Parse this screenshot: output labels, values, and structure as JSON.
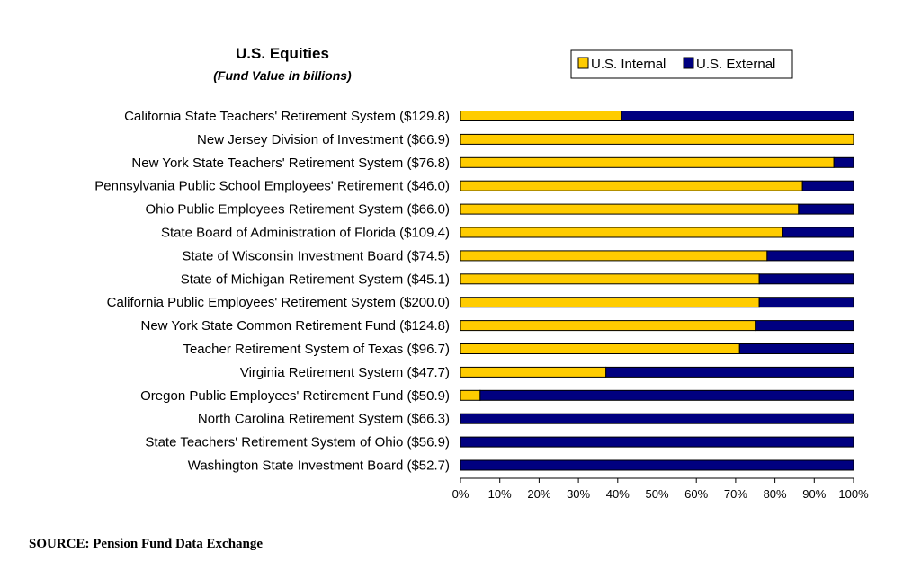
{
  "chart_data": {
    "type": "bar",
    "orientation": "horizontal",
    "stacked": "percent",
    "title": "U.S. Equities",
    "subtitle": "(Fund Value in billions)",
    "categories": [
      "California State Teachers' Retirement System ($129.8)",
      "New Jersey Division of Investment ($66.9)",
      "New York State Teachers' Retirement System ($76.8)",
      "Pennsylvania Public School Employees' Retirement ($46.0)",
      "Ohio Public Employees Retirement System ($66.0)",
      "State Board of Administration of Florida ($109.4)",
      "State of Wisconsin Investment Board ($74.5)",
      "State of Michigan Retirement System ($45.1)",
      "California Public Employees' Retirement System ($200.0)",
      "New York State Common Retirement Fund ($124.8)",
      "Teacher Retirement System of Texas ($96.7)",
      "Virginia Retirement System ($47.7)",
      "Oregon Public Employees' Retirement Fund ($50.9)",
      "North Carolina Retirement System ($66.3)",
      "State Teachers' Retirement System of Ohio ($56.9)",
      "Washington State Investment Board ($52.7)"
    ],
    "series": [
      {
        "name": "U.S. Internal",
        "color": "#FFCC00",
        "values": [
          41,
          100,
          95,
          87,
          86,
          82,
          78,
          76,
          76,
          75,
          71,
          37,
          5,
          0,
          0,
          0
        ]
      },
      {
        "name": "U.S. External",
        "color": "#000080",
        "values": [
          59,
          0,
          5,
          13,
          14,
          18,
          22,
          24,
          24,
          25,
          29,
          63,
          95,
          100,
          100,
          100
        ]
      }
    ],
    "xlim": [
      0,
      100
    ],
    "xticks": [
      "0%",
      "10%",
      "20%",
      "30%",
      "40%",
      "50%",
      "60%",
      "70%",
      "80%",
      "90%",
      "100%"
    ],
    "legend": "top-right",
    "grid": false
  },
  "footer": {
    "source": "SOURCE: Pension Fund Data Exchange"
  }
}
